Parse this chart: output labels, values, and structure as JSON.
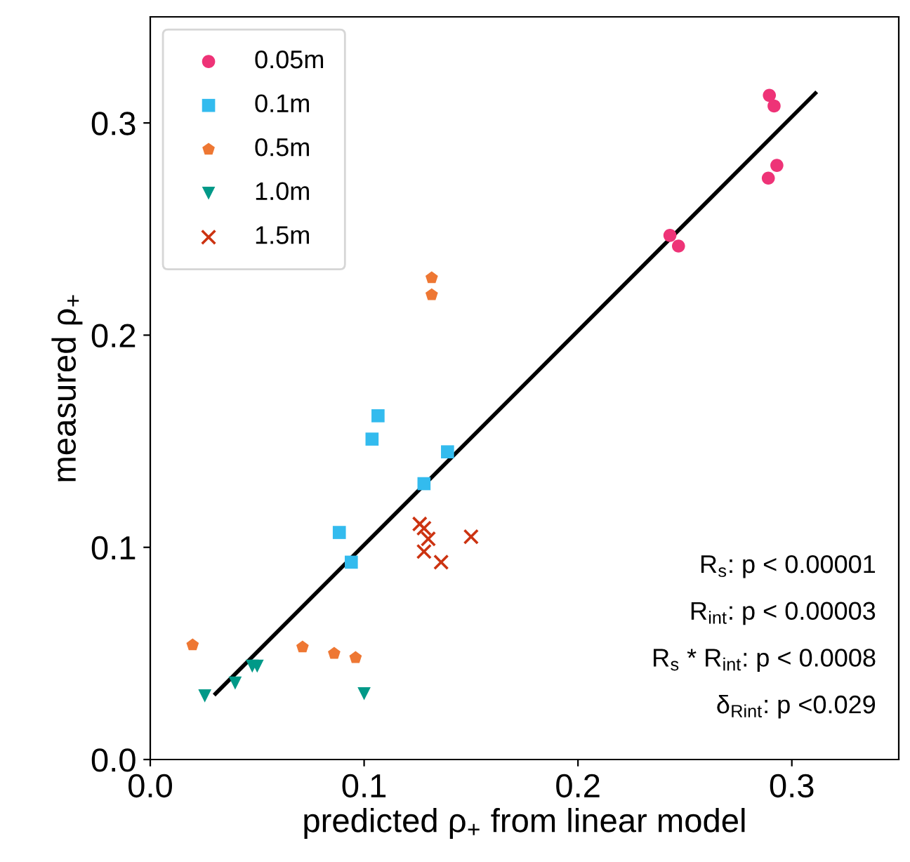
{
  "chart_data": {
    "type": "scatter",
    "xlabel": "predicted ρ$_{+}$ from linear model",
    "ylabel": "measured ρ$_{+}$",
    "xlim": [
      0,
      0.35
    ],
    "ylim": [
      0,
      0.35
    ],
    "xticks": [
      {
        "value": 0,
        "label": "0.0"
      },
      0.1,
      0.2,
      0.3
    ],
    "yticks": [
      {
        "value": 0,
        "label": "0.0"
      },
      0.1,
      0.2,
      0.3
    ],
    "grid": false,
    "legend": "top left",
    "series": [
      {
        "name": "0.05m",
        "color": "#ee3377",
        "marker": "circle",
        "x": [
          0.2895,
          0.2917,
          0.293,
          0.289,
          0.243,
          0.247
        ],
        "values": [
          0.313,
          0.308,
          0.28,
          0.274,
          0.247,
          0.242
        ]
      },
      {
        "name": "0.1m",
        "color": "#33bbee",
        "marker": "square",
        "x": [
          0.1065,
          0.1037,
          0.139,
          0.128,
          0.0884,
          0.094
        ],
        "values": [
          0.162,
          0.151,
          0.145,
          0.13,
          0.107,
          0.093
        ]
      },
      {
        "name": "0.5m",
        "color": "#ee7733",
        "x": [
          0.1316,
          0.1316,
          0.0198,
          0.0712,
          0.086,
          0.096
        ],
        "values": [
          0.227,
          0.219,
          0.054,
          0.053,
          0.05,
          0.048
        ]
      },
      {
        "name": "1.0m",
        "color": "#009988",
        "marker": "triangle",
        "x": [
          0.0255,
          0.0397,
          0.0477,
          0.05,
          0.1
        ],
        "values": [
          0.03,
          0.036,
          0.044,
          0.044,
          0.031
        ]
      },
      {
        "name": "1.5m",
        "color": "#cc3311",
        "marker": "cross",
        "x": [
          0.126,
          0.128,
          0.13,
          0.128,
          0.136,
          0.15
        ],
        "values": [
          0.111,
          0.109,
          0.104,
          0.098,
          0.093,
          0.105
        ]
      },
      {
        "type": "line",
        "color": "#000000",
        "marker": "none",
        "line_style": "solid",
        "x": [
          0.0305,
          0.311
        ],
        "values": [
          0.031,
          0.314
        ]
      }
    ],
    "annotations": [
      "R$_{s}$: p < 0.00001",
      "R$_{int}$: p < 0.00003",
      "R$_{s}$ * R$_{int}$: p < 0.0008",
      "δ$_{Rint}$: p <0.029"
    ]
  }
}
